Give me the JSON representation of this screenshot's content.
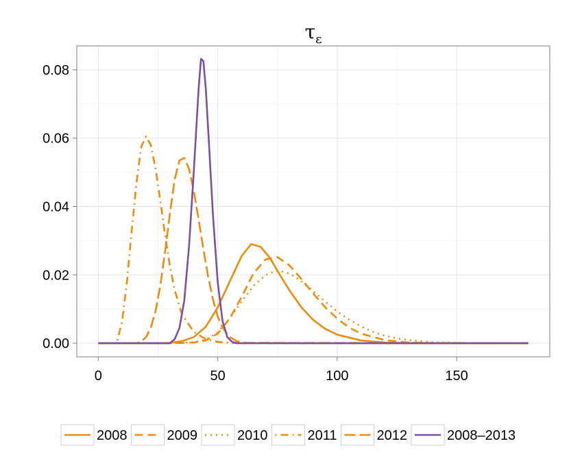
{
  "chart_data": {
    "type": "line",
    "title": "τ",
    "title_subscript": "ε",
    "xlabel": "",
    "ylabel": "",
    "xlim": [
      -9,
      189
    ],
    "ylim": [
      -0.004,
      0.087
    ],
    "x_ticks": [
      0,
      50,
      100,
      150
    ],
    "x_tick_labels": [
      "0",
      "50",
      "100",
      "150"
    ],
    "y_ticks": [
      0,
      0.02,
      0.04,
      0.06,
      0.08
    ],
    "y_tick_labels": [
      "0.00",
      "0.02",
      "0.04",
      "0.06",
      "0.08"
    ],
    "grid": true,
    "legend_position": "bottom",
    "series": [
      {
        "name": "2008",
        "color": "#F08A0C",
        "linestyle": "solid",
        "x": [
          0,
          25,
          30,
          35,
          40,
          45,
          50,
          55,
          60,
          64,
          68,
          72,
          76,
          80,
          85,
          90,
          95,
          100,
          110,
          120,
          130,
          140,
          150,
          180
        ],
        "y": [
          0,
          0,
          0.0001,
          0.0006,
          0.0018,
          0.0048,
          0.0105,
          0.018,
          0.0255,
          0.029,
          0.0282,
          0.0248,
          0.02,
          0.0155,
          0.0105,
          0.0068,
          0.0042,
          0.0025,
          0.0008,
          0.0002,
          5e-05,
          0,
          0,
          0
        ]
      },
      {
        "name": "2009",
        "color": "#F08A0C",
        "linestyle": "dashed",
        "x": [
          0,
          30,
          40,
          45,
          50,
          55,
          60,
          65,
          70,
          75,
          80,
          85,
          90,
          95,
          100,
          105,
          110,
          120,
          130,
          140,
          150,
          180
        ],
        "y": [
          0,
          0,
          0.0002,
          0.0008,
          0.0028,
          0.0072,
          0.0135,
          0.0205,
          0.0245,
          0.0252,
          0.0228,
          0.0188,
          0.0145,
          0.0105,
          0.0072,
          0.0046,
          0.0028,
          0.0009,
          0.0002,
          5e-05,
          0,
          0
        ]
      },
      {
        "name": "2010",
        "color": "#F08A0C",
        "linestyle": "dotted",
        "x": [
          0,
          30,
          40,
          45,
          50,
          55,
          60,
          65,
          70,
          74,
          78,
          82,
          86,
          90,
          95,
          100,
          105,
          110,
          115,
          120,
          125,
          130,
          140,
          150,
          160,
          180
        ],
        "y": [
          0,
          0,
          0.0003,
          0.001,
          0.0032,
          0.0072,
          0.0122,
          0.0168,
          0.0199,
          0.0211,
          0.0209,
          0.0196,
          0.0176,
          0.0152,
          0.0122,
          0.0093,
          0.0069,
          0.0049,
          0.0033,
          0.0022,
          0.0014,
          0.0009,
          0.0003,
          0.0001,
          0,
          0
        ]
      },
      {
        "name": "2011",
        "color": "#F08A0C",
        "linestyle": "dotdash",
        "x": [
          8,
          10,
          12,
          14,
          16,
          18,
          20,
          22,
          24,
          26,
          28,
          30,
          32,
          35,
          40,
          45,
          50,
          55,
          60,
          180
        ],
        "y": [
          0.0008,
          0.0065,
          0.018,
          0.033,
          0.047,
          0.0575,
          0.0605,
          0.058,
          0.051,
          0.0415,
          0.0315,
          0.0225,
          0.0155,
          0.0085,
          0.0033,
          0.0012,
          0.0004,
          0.0001,
          0,
          0
        ]
      },
      {
        "name": "2012",
        "color": "#F08A0C",
        "linestyle": "longdash",
        "x": [
          0,
          16,
          18,
          20,
          22,
          24,
          26,
          28,
          30,
          32,
          34,
          36,
          38,
          40,
          42,
          44,
          46,
          48,
          50,
          52,
          55,
          58,
          62,
          180
        ],
        "y": [
          0,
          0,
          0.0005,
          0.0018,
          0.0045,
          0.0095,
          0.017,
          0.027,
          0.038,
          0.048,
          0.0535,
          0.0542,
          0.051,
          0.0445,
          0.0362,
          0.0275,
          0.0195,
          0.0128,
          0.0078,
          0.0046,
          0.0018,
          0.0006,
          0.0001,
          0
        ]
      },
      {
        "name": "2008–2013",
        "color": "#7B4FA8",
        "linestyle": "solid",
        "x": [
          0,
          30,
          32,
          34,
          36,
          38,
          40,
          41,
          42,
          43,
          44,
          45,
          46,
          48,
          50,
          52,
          54,
          56,
          58,
          180
        ],
        "y": [
          0,
          0,
          0.0012,
          0.0045,
          0.0125,
          0.0285,
          0.0505,
          0.0625,
          0.0745,
          0.0832,
          0.0825,
          0.0745,
          0.0625,
          0.0375,
          0.0178,
          0.0065,
          0.0018,
          0.0004,
          0,
          0
        ]
      }
    ]
  }
}
